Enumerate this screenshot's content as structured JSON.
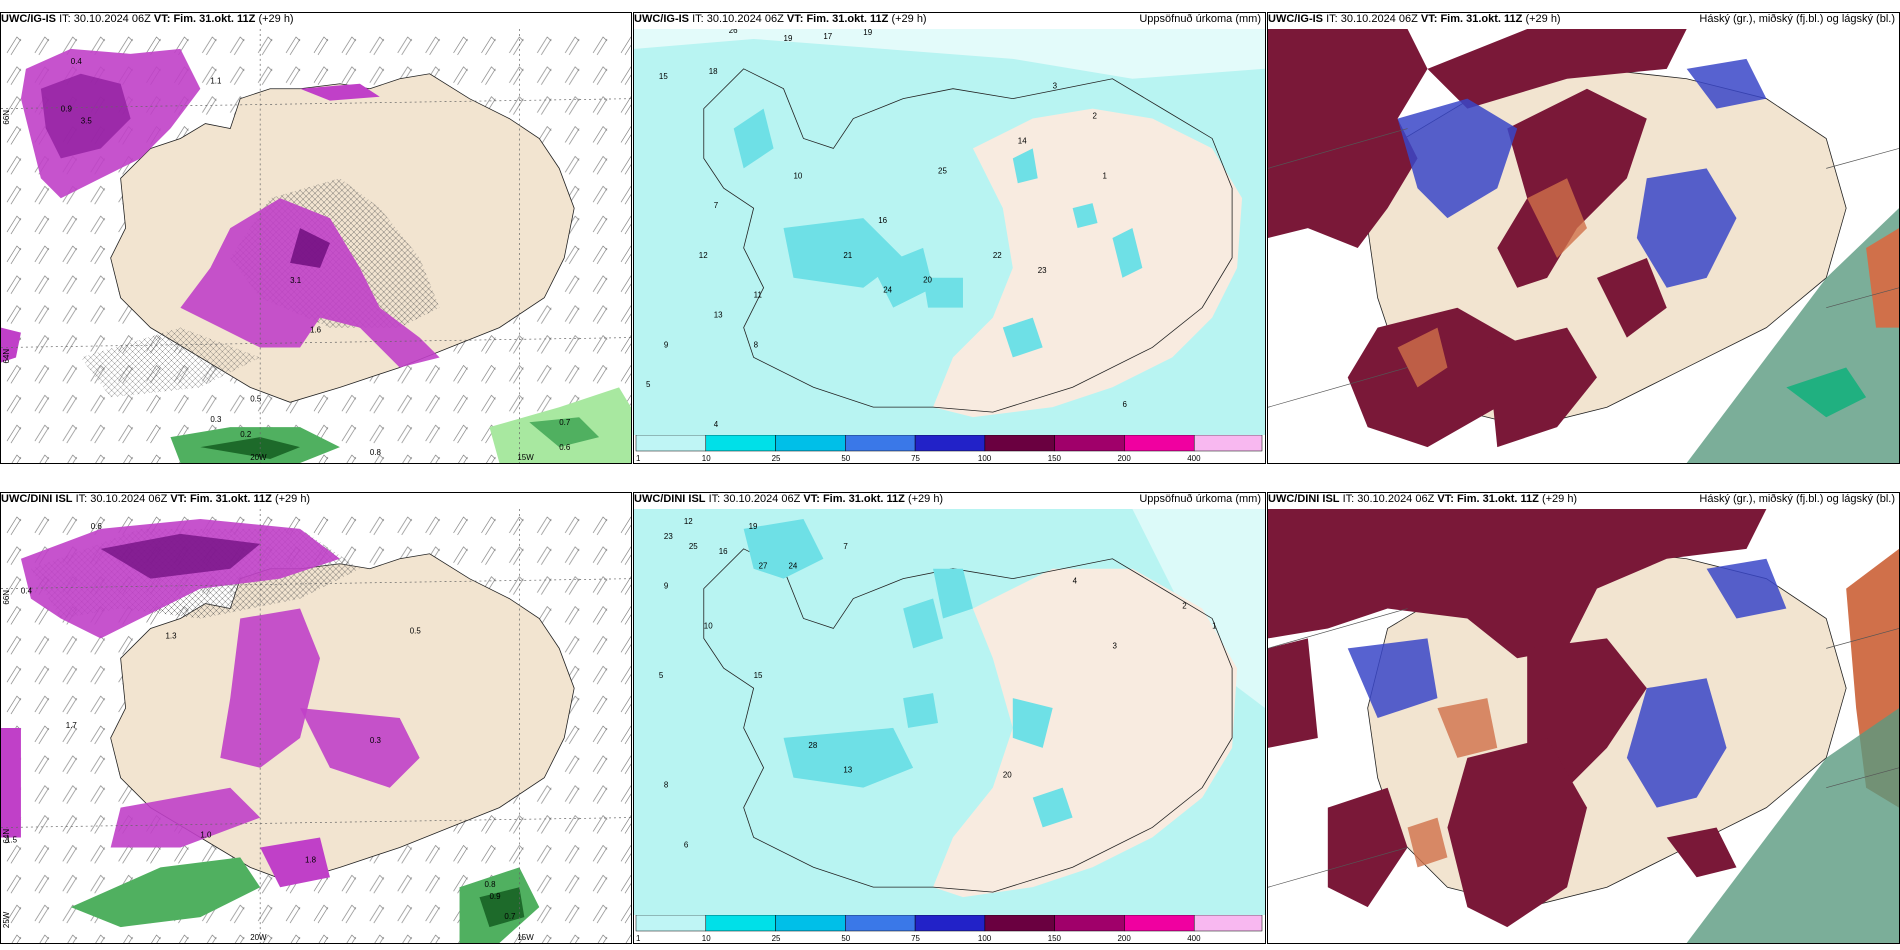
{
  "panels": [
    {
      "id": "top-left",
      "model": "UWC/IG-IS",
      "it_label": "IT:",
      "it": "30.10.2024 06Z",
      "vt_label": "VT:",
      "vt": "Fim. 31.okt. 11Z",
      "lead": "(+29 h)",
      "right": ""
    },
    {
      "id": "top-mid",
      "model": "UWC/IG-IS",
      "it_label": "IT:",
      "it": "30.10.2024 06Z",
      "vt_label": "VT:",
      "vt": "Fim. 31.okt. 11Z",
      "lead": "(+29 h)",
      "right": "Uppsöfnuð úrkoma (mm)"
    },
    {
      "id": "top-right",
      "model": "UWC/IG-IS",
      "it_label": "IT:",
      "it": "30.10.2024 06Z",
      "vt_label": "VT:",
      "vt": "Fim. 31.okt. 11Z",
      "lead": "(+29 h)",
      "right": "Háský (gr.), miðský (fj.bl.) og lágský (bl.)"
    },
    {
      "id": "bot-left",
      "model": "UWC/DINI ISL",
      "it_label": "IT:",
      "it": "30.10.2024 06Z",
      "vt_label": "VT:",
      "vt": "Fim. 31.okt. 11Z",
      "lead": "(+29 h)",
      "right": ""
    },
    {
      "id": "bot-mid",
      "model": "UWC/DINI ISL",
      "it_label": "IT:",
      "it": "30.10.2024 06Z",
      "vt_label": "VT:",
      "vt": "Fim. 31.okt. 11Z",
      "lead": "(+29 h)",
      "right": "Uppsöfnuð úrkoma (mm)"
    },
    {
      "id": "bot-right",
      "model": "UWC/DINI ISL",
      "it_label": "IT:",
      "it": "30.10.2024 06Z",
      "vt_label": "VT:",
      "vt": "Fim. 31.okt. 11Z",
      "lead": "(+29 h)",
      "right": "Háský (gr.), miðský (fj.bl.) og lágský (bl.)"
    }
  ],
  "grid_labels": {
    "lat66": "66N",
    "lat64": "64N",
    "lon25": "25W",
    "lon20": "20W",
    "lon15": "15W"
  },
  "colorbar": {
    "ticks": [
      "1",
      "10",
      "25",
      "50",
      "75",
      "100",
      "150",
      "200",
      "400"
    ],
    "colors": [
      "#bff5f5",
      "#00e0e8",
      "#00bfe8",
      "#3a78e8",
      "#2222c8",
      "#6a0040",
      "#a0006a",
      "#f000a0",
      "#f8b8f0"
    ]
  },
  "colors": {
    "land": "#f2e4d0",
    "precip_light": "#b8f4f2",
    "precip_mid": "#6ee0e6",
    "magenta": "#c040c8",
    "green": "#50b060",
    "cloud_high": "#7a1838",
    "cloud_mid": "#3a46c8",
    "cloud_low": "#d0704a"
  },
  "precip_top": {
    "values": [
      "19",
      "17",
      "19",
      "15",
      "26",
      "18",
      "9",
      "8",
      "7",
      "5",
      "12",
      "11",
      "13",
      "10",
      "16",
      "14",
      "24",
      "25",
      "22",
      "21",
      "20",
      "23",
      "3",
      "2",
      "1",
      "4",
      "6"
    ]
  },
  "precip_bot": {
    "values": [
      "23",
      "12",
      "25",
      "16",
      "19",
      "27",
      "24",
      "9",
      "10",
      "5",
      "15",
      "28",
      "13",
      "20",
      "3",
      "2",
      "1",
      "4",
      "6",
      "8",
      "7"
    ]
  },
  "thickness_top": {
    "values": [
      "0.4",
      "0.9",
      "3.5",
      "1.1",
      "0.5",
      "0.2",
      "3.1",
      "1.6",
      "0.8",
      "0.6",
      "0.7",
      "0.3"
    ]
  },
  "thickness_bot": {
    "values": [
      "0.6",
      "0.4",
      "0.5",
      "1.3",
      "1.7",
      "1.5",
      "1.0",
      "1.8",
      "0.8",
      "0.9",
      "0.7",
      "0.3"
    ]
  }
}
